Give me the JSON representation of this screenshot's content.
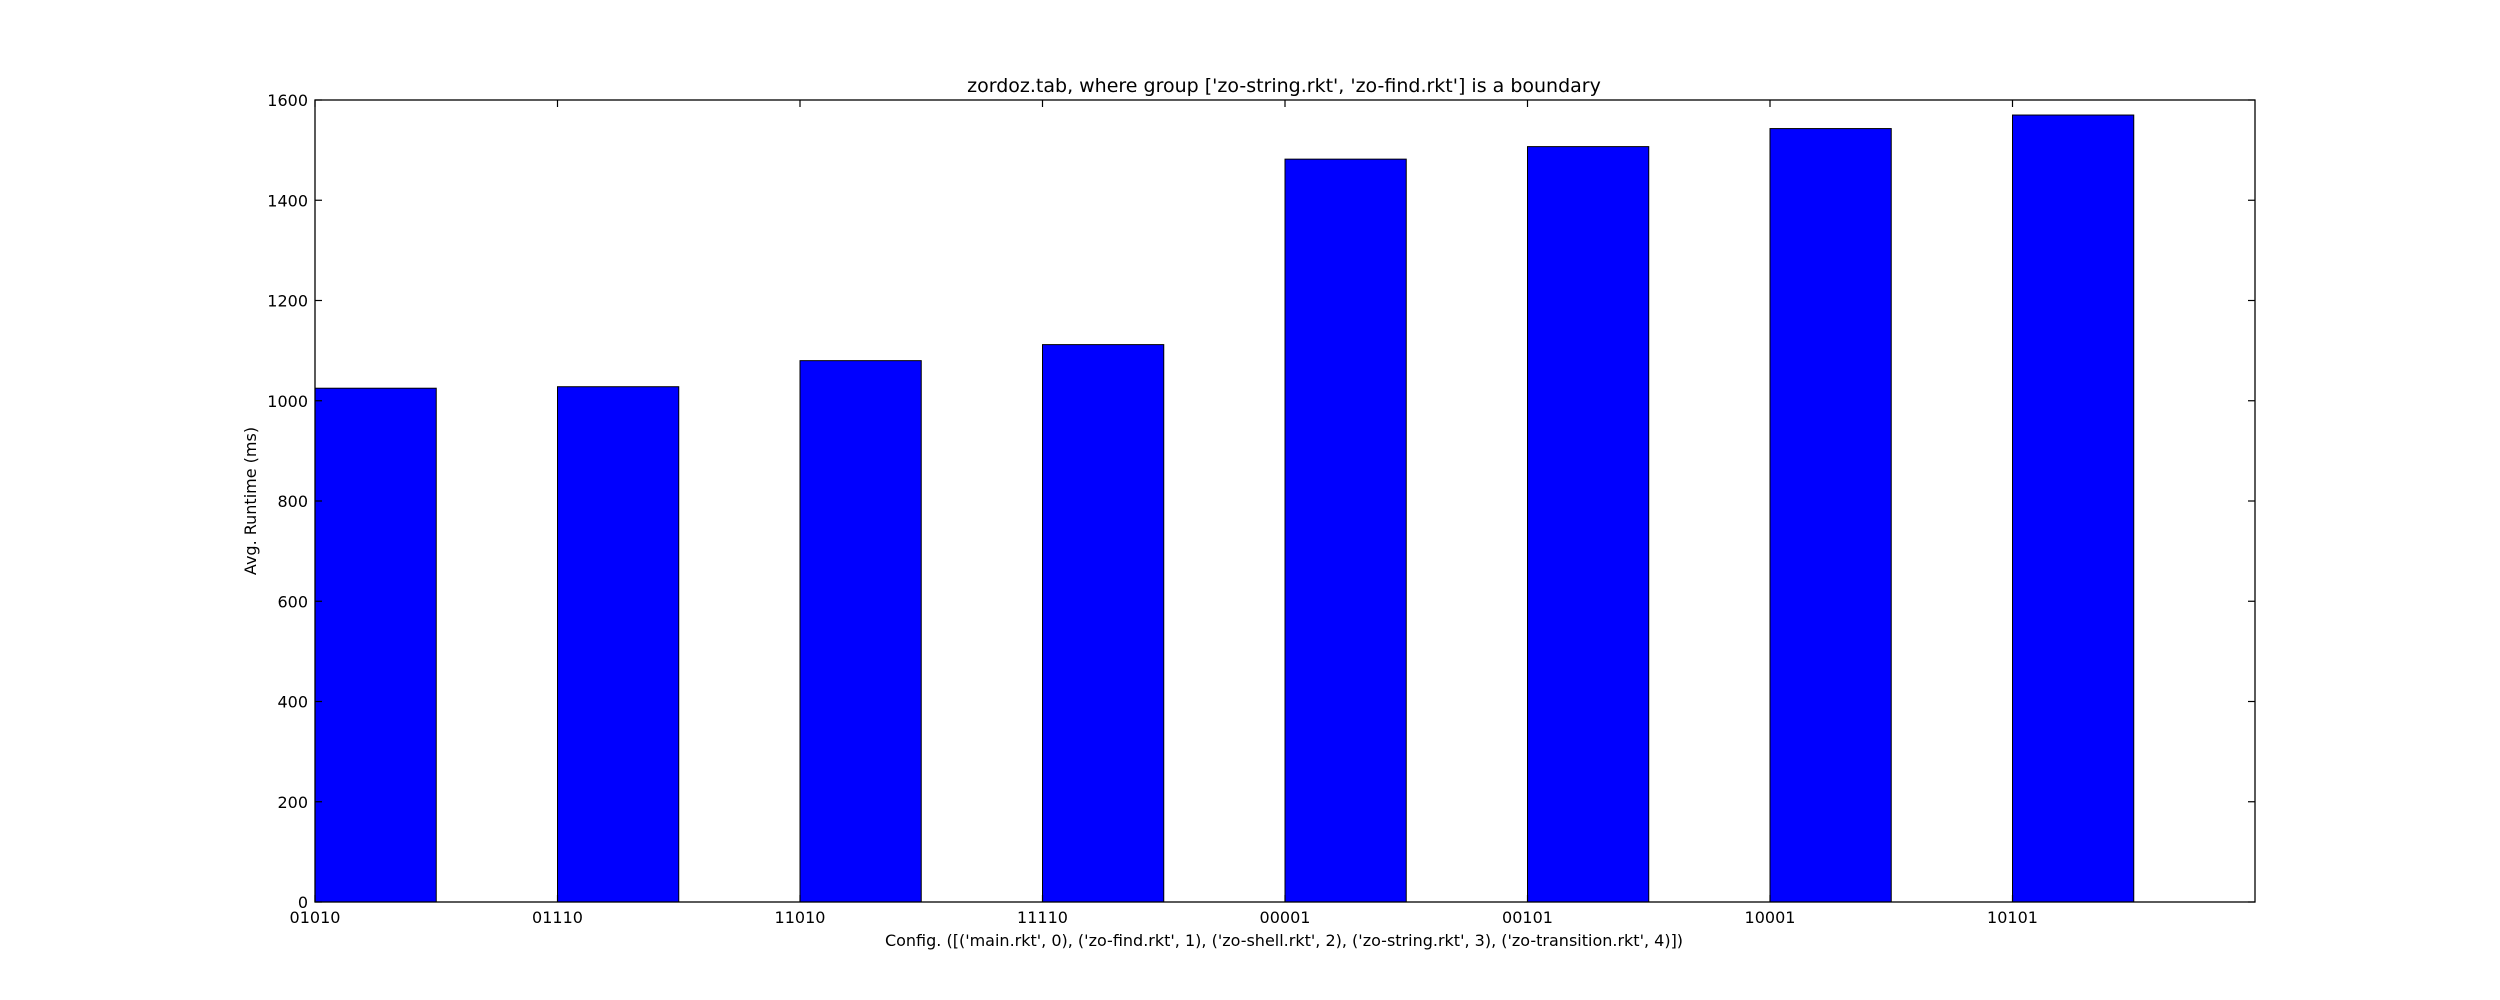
{
  "chart_data": {
    "type": "bar",
    "title": "zordoz.tab, where group ['zo-string.rkt', 'zo-find.rkt'] is a boundary",
    "xlabel": "Config. ([('main.rkt', 0), ('zo-find.rkt', 1), ('zo-shell.rkt', 2), ('zo-string.rkt', 3), ('zo-transition.rkt', 4)])",
    "ylabel": "Avg. Runtime (ms)",
    "categories": [
      "01010",
      "01110",
      "11010",
      "11110",
      "00001",
      "00101",
      "10001",
      "10101"
    ],
    "values": [
      1025,
      1028,
      1080,
      1112,
      1482,
      1507,
      1543,
      1570
    ],
    "ylim": [
      0,
      1600
    ],
    "yticks": [
      0,
      200,
      400,
      600,
      800,
      1000,
      1200,
      1400,
      1600
    ],
    "xlim": [
      0,
      8
    ],
    "bar_width": 0.5,
    "bar_color": "#0000ff",
    "grid": false
  }
}
